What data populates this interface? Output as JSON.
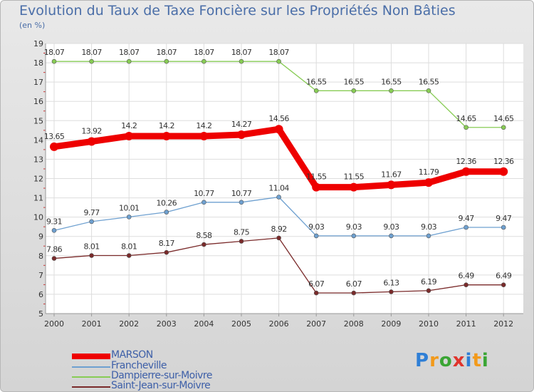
{
  "chart_data": {
    "type": "line",
    "title": "Evolution du Taux de Taxe Foncière sur les Propriétés Non Bâties",
    "subtitle": "(en %)",
    "xlabel": "",
    "ylabel": "",
    "ylim": [
      5,
      19
    ],
    "y_ticks": [
      "5",
      "6",
      "7",
      "8",
      "9",
      "10",
      "11",
      "12",
      "13",
      "14",
      "15",
      "16",
      "17",
      "18",
      "19"
    ],
    "categories": [
      "2000",
      "2001",
      "2002",
      "2003",
      "2004",
      "2005",
      "2006",
      "2007",
      "2008",
      "2009",
      "2010",
      "2011",
      "2012"
    ],
    "grid": true,
    "legend_position": "bottom-left",
    "series": [
      {
        "name": "MARSON",
        "color": "#ee0000",
        "style": "thick",
        "values": [
          13.65,
          13.92,
          14.2,
          14.2,
          14.2,
          14.27,
          14.56,
          11.55,
          11.55,
          11.67,
          11.79,
          12.36,
          12.36
        ],
        "labels": [
          "13.65",
          "13.92",
          "14.2",
          "14.2",
          "14.2",
          "14.27",
          "14.56",
          "11.55",
          "11.55",
          "11.67",
          "11.79",
          "12.36",
          "12.36"
        ]
      },
      {
        "name": "Francheville",
        "color": "#6ea0d0",
        "style": "thin",
        "values": [
          9.31,
          9.77,
          10.01,
          10.26,
          10.77,
          10.77,
          11.04,
          9.03,
          9.03,
          9.03,
          9.03,
          9.47,
          9.47
        ],
        "labels": [
          "9.31",
          "9.77",
          "10.01",
          "10.26",
          "10.77",
          "10.77",
          "11.04",
          "9.03",
          "9.03",
          "9.03",
          "9.03",
          "9.47",
          "9.47"
        ]
      },
      {
        "name": "Dampierre-sur-Moivre",
        "color": "#88cc55",
        "style": "thin",
        "values": [
          18.07,
          18.07,
          18.07,
          18.07,
          18.07,
          18.07,
          18.07,
          16.55,
          16.55,
          16.55,
          16.55,
          14.65,
          14.65
        ],
        "labels": [
          "18.07",
          "18.07",
          "18.07",
          "18.07",
          "18.07",
          "18.07",
          "18.07",
          "16.55",
          "16.55",
          "16.55",
          "16.55",
          "14.65",
          "14.65"
        ]
      },
      {
        "name": "Saint-Jean-sur-Moivre",
        "color": "#7a2a2a",
        "style": "thin",
        "values": [
          7.86,
          8.01,
          8.01,
          8.17,
          8.58,
          8.75,
          8.92,
          6.07,
          6.07,
          6.13,
          6.19,
          6.49,
          6.49
        ],
        "labels": [
          "7.86",
          "8.01",
          "8.01",
          "8.17",
          "8.58",
          "8.75",
          "8.92",
          "6.07",
          "6.07",
          "6.13",
          "6.19",
          "6.49",
          "6.49"
        ]
      }
    ]
  },
  "brand": {
    "letters": [
      "P",
      "r",
      "o",
      "x",
      "i",
      "t",
      "i"
    ],
    "colors": [
      "#2f7fd6",
      "#f29a1b",
      "#3aa534",
      "#e0342c",
      "#2f7fd6",
      "#f29a1b",
      "#3aa534"
    ]
  }
}
